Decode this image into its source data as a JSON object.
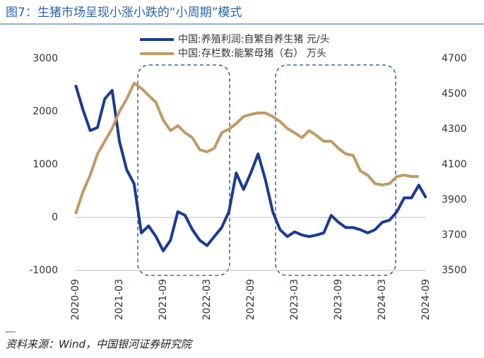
{
  "chart_data": {
    "type": "line",
    "title": "图7：生猪市场呈现小涨小跌的“小周期”模式",
    "source": "资料来源：Wind，中国银河证券研究院",
    "categories": [
      "2020-09",
      null,
      null,
      null,
      null,
      null,
      "2021-03",
      null,
      null,
      null,
      null,
      null,
      "2021-09",
      null,
      null,
      null,
      null,
      null,
      "2022-03",
      null,
      null,
      null,
      null,
      null,
      "2022-09",
      null,
      null,
      null,
      null,
      null,
      "2023-03",
      null,
      null,
      null,
      null,
      null,
      "2023-09",
      null,
      null,
      null,
      null,
      null,
      "2024-03",
      null,
      null,
      null,
      null,
      null,
      "2024-09"
    ],
    "series": [
      {
        "name": "中国:养殖利润:自繁自养生猪 元/头",
        "color": "#1a3a94",
        "axis": "y",
        "values": [
          2500,
          2040,
          1640,
          1700,
          2240,
          2400,
          1440,
          900,
          640,
          -290,
          -160,
          -360,
          -630,
          -430,
          110,
          40,
          -230,
          -430,
          -530,
          -360,
          -190,
          110,
          840,
          530,
          840,
          1200,
          710,
          110,
          -230,
          -360,
          -270,
          -330,
          -360,
          -330,
          -290,
          40,
          -90,
          -190,
          -190,
          -230,
          -290,
          -230,
          -90,
          -50,
          110,
          370,
          370,
          610,
          370
        ]
      },
      {
        "name": "中国:存栏数:能繁母猪（右） 万头",
        "color": "#c09a66",
        "axis": "y2",
        "values": [
          3820,
          3944,
          4040,
          4160,
          4232,
          4304,
          4400,
          4472,
          4560,
          4532,
          4492,
          4452,
          4352,
          4292,
          4320,
          4280,
          4252,
          4184,
          4172,
          4192,
          4280,
          4300,
          4332,
          4372,
          4384,
          4392,
          4392,
          4372,
          4344,
          4304,
          4280,
          4252,
          4292,
          4264,
          4232,
          4232,
          4192,
          4160,
          4152,
          4064,
          4040,
          3992,
          3984,
          3992,
          4032,
          4040,
          4032,
          4032,
          null
        ]
      }
    ],
    "ylim": [
      -1000,
      3000
    ],
    "yticks": [
      -1000,
      0,
      1000,
      2000,
      3000
    ],
    "y2lim": [
      3500,
      4700
    ],
    "y2ticks": [
      3500,
      3700,
      3900,
      4100,
      4300,
      4500,
      4700
    ],
    "legend": "top"
  }
}
